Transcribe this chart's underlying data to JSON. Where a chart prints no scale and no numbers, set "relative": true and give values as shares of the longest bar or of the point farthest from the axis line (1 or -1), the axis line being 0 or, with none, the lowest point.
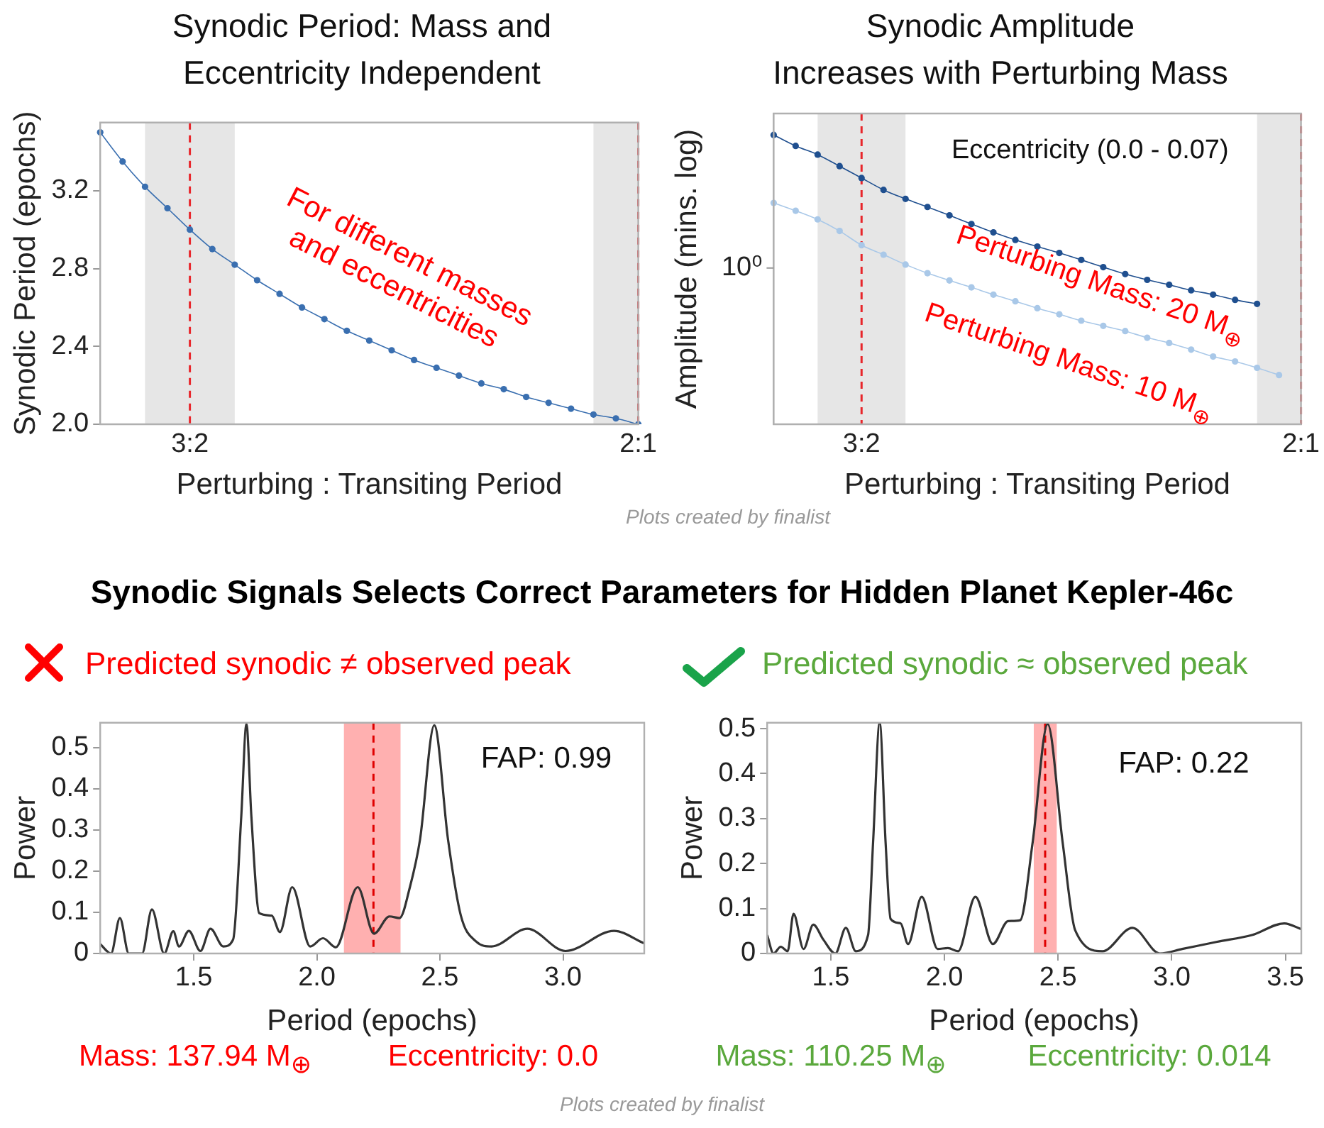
{
  "chart_data": [
    {
      "type": "line",
      "title": "Synodic Period: Mass and\nEccentricity Independent",
      "xlabel": "Perturbing : Transiting Period",
      "ylabel": "Synodic Period (epochs)",
      "marker": "circle",
      "categories": [
        null,
        null,
        null,
        null,
        "3:2",
        null,
        null,
        null,
        null,
        null,
        null,
        null,
        null,
        null,
        null,
        null,
        null,
        null,
        null,
        null,
        null,
        null,
        null,
        null,
        "2:1"
      ],
      "values": [
        3.5,
        3.35,
        3.22,
        3.11,
        3.0,
        2.9,
        2.82,
        2.74,
        2.67,
        2.6,
        2.54,
        2.48,
        2.43,
        2.38,
        2.33,
        2.29,
        2.25,
        2.21,
        2.18,
        2.14,
        2.11,
        2.08,
        2.05,
        2.03,
        2.0
      ],
      "color": "#3a6fb0",
      "ylim": [
        2.0,
        3.55
      ],
      "yticks": [
        {
          "value": 2.0,
          "label": "2.0"
        },
        2.4,
        2.8,
        3.2
      ],
      "ref_lines": [
        {
          "axis": "x",
          "value": "3:2",
          "color": "#e8262b",
          "line_style": "dashed"
        },
        {
          "axis": "x",
          "value": "2:1",
          "color": "#e8262b",
          "line_style": "dashed"
        }
      ],
      "annotations": [
        "For different masses\nand eccentricities"
      ]
    },
    {
      "type": "line",
      "title": "Synodic Amplitude\nIncreases with Perturbing Mass",
      "xlabel": "Perturbing : Transiting Period",
      "ylabel": "Amplitude (mins. log)",
      "marker": "circle",
      "relative": true,
      "categories": [
        null,
        null,
        null,
        null,
        "3:2",
        null,
        null,
        null,
        null,
        null,
        null,
        null,
        null,
        null,
        null,
        null,
        null,
        null,
        null,
        null,
        null,
        null,
        null,
        null,
        "2:1"
      ],
      "series": [
        {
          "name": "Perturbing Mass: 20 M$_{⊕}$",
          "color": "#1f4f8f",
          "values": [
            1,
            0.962,
            0.932,
            0.892,
            0.851,
            0.81,
            0.779,
            0.751,
            0.722,
            0.692,
            0.663,
            0.637,
            0.614,
            0.592,
            0.568,
            0.543,
            0.519,
            0.499,
            0.482,
            0.463,
            0.448,
            0.43,
            0.416,
            null,
            null
          ]
        },
        {
          "name": "Perturbing Mass: 10 M$_{⊕}$",
          "color": "#a9c8e8",
          "values": [
            0.765,
            0.738,
            0.708,
            0.668,
            0.619,
            0.586,
            0.552,
            0.522,
            0.497,
            0.473,
            0.448,
            0.425,
            0.401,
            0.38,
            0.358,
            0.34,
            0.322,
            0.299,
            0.281,
            0.258,
            0.234,
            0.217,
            0.195,
            0.17,
            null
          ]
        }
      ],
      "ref_lines": [
        {
          "axis": "x",
          "value": "3:2",
          "color": "#e8262b",
          "line_style": "dashed"
        },
        {
          "axis": "x",
          "value": "2:1",
          "color": "#e8262b",
          "line_style": "dashed"
        }
      ],
      "annotations": [
        "Eccentricity (0.0 - 0.07)",
        "Plots created by finalist",
        "10⁰"
      ]
    },
    {
      "type": "line",
      "title": "Predicted synodic ≠ observed peak",
      "xlabel": "Period (epochs)",
      "ylabel": "Power",
      "marker": "none",
      "x": [
        1.12,
        1.164,
        1.2,
        1.236,
        1.29,
        1.33,
        1.38,
        1.417,
        1.44,
        1.48,
        1.527,
        1.568,
        1.62,
        1.66,
        1.693,
        1.714,
        1.734,
        1.766,
        1.817,
        1.85,
        1.9,
        1.973,
        2.025,
        2.077,
        2.166,
        2.232,
        2.295,
        2.336,
        2.378,
        2.419,
        2.477,
        2.533,
        2.585,
        2.647,
        2.71,
        2.855,
        3.01,
        3.207,
        3.328
      ],
      "values": [
        0.023,
        0,
        0.086,
        0,
        0,
        0.107,
        0,
        0.054,
        0.017,
        0.055,
        0.006,
        0.06,
        0.017,
        0.034,
        0.333,
        0.557,
        0.333,
        0.098,
        0.092,
        0.052,
        0.161,
        0.017,
        0.037,
        0.015,
        0.161,
        0.048,
        0.09,
        0.086,
        0.161,
        0.276,
        0.554,
        0.276,
        0.092,
        0.029,
        0.017,
        0.06,
        0.006,
        0.055,
        0.025
      ],
      "color": "#333333",
      "xlim": [
        1.12,
        3.33
      ],
      "xticks": [
        {
          "value": 1.5,
          "label": "1.5"
        },
        {
          "value": 2,
          "label": "2.0"
        },
        {
          "value": 2.5,
          "label": "2.5"
        },
        {
          "value": 3,
          "label": "3.0"
        }
      ],
      "ylim": [
        0,
        0.56
      ],
      "yticks": [
        0,
        0.1,
        0.2,
        0.3,
        0.4,
        0.5
      ],
      "bands": [
        {
          "axis": "x",
          "from": 2.11,
          "to": 2.34,
          "color": "#ffb0b0"
        }
      ],
      "ref_lines": [
        {
          "axis": "x",
          "value": 2.23,
          "color": "#e00000",
          "line_style": "dashed"
        }
      ],
      "annotations": [
        "Synodic Signals Selects Correct Parameters for Hidden Planet Kepler-46c",
        "FAP: 0.99",
        "Mass: 137.94 M$_{⊕}$",
        "Eccentricity: 0.0"
      ]
    },
    {
      "type": "line",
      "title": "Predicted synodic ≈ observed peak",
      "xlabel": "Period (epochs)",
      "ylabel": "Power",
      "marker": "none",
      "x": [
        1.22,
        1.248,
        1.28,
        1.31,
        1.336,
        1.38,
        1.423,
        1.467,
        1.52,
        1.566,
        1.61,
        1.664,
        1.686,
        1.715,
        1.741,
        1.763,
        1.807,
        1.84,
        1.9,
        1.97,
        2.015,
        2.06,
        2.136,
        2.213,
        2.28,
        2.333,
        2.388,
        2.454,
        2.52,
        2.575,
        2.695,
        2.827,
        2.948,
        3.046,
        3.2,
        3.353,
        3.495,
        3.57
      ],
      "values": [
        0.041,
        0,
        0.015,
        0.005,
        0.088,
        0.01,
        0.064,
        0.031,
        0,
        0.057,
        0.005,
        0.041,
        0.247,
        0.513,
        0.247,
        0.077,
        0.067,
        0.021,
        0.126,
        0.01,
        0.012,
        0.005,
        0.126,
        0.021,
        0.072,
        0.074,
        0.247,
        0.51,
        0.247,
        0.052,
        0.005,
        0.057,
        0,
        0.01,
        0.026,
        0.041,
        0.067,
        0.054
      ],
      "color": "#333333",
      "xlim": [
        1.22,
        3.57
      ],
      "xticks": [
        {
          "value": 1.5,
          "label": "1.5"
        },
        {
          "value": 2,
          "label": "2.0"
        },
        {
          "value": 2.5,
          "label": "2.5"
        },
        {
          "value": 3,
          "label": "3.0"
        },
        {
          "value": 3.5,
          "label": "3.5"
        }
      ],
      "ylim": [
        0,
        0.513
      ],
      "yticks": [
        0,
        0.1,
        0.2,
        0.3,
        0.4,
        0.5
      ],
      "bands": [
        {
          "axis": "x",
          "from": 2.393,
          "to": 2.494,
          "color": "#ffb0b0"
        }
      ],
      "ref_lines": [
        {
          "axis": "x",
          "value": 2.443,
          "color": "#e00000",
          "line_style": "dashed"
        }
      ],
      "annotations": [
        "FAP: 0.22",
        "Mass: 110.25 M$_{⊕}$",
        "Eccentricity: 0.014",
        "Plots created by finalist"
      ]
    }
  ]
}
